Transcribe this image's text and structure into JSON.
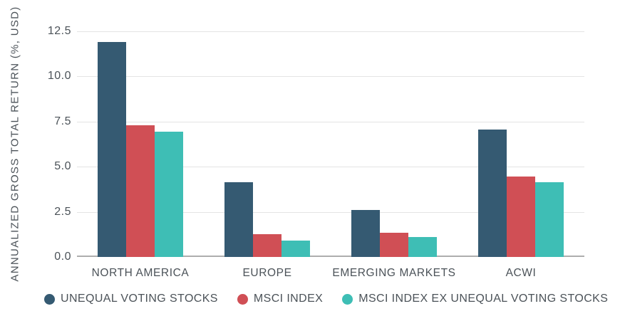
{
  "chart_data": {
    "type": "bar",
    "title": "",
    "xlabel": "",
    "ylabel": "ANNUALIZED GROSS TOTAL RETURN (%, USD)",
    "categories": [
      "NORTH AMERICA",
      "EUROPE",
      "EMERGING MARKETS",
      "ACWI"
    ],
    "series": [
      {
        "name": "UNEQUAL VOTING STOCKS",
        "color": "#355A72",
        "values": [
          11.9,
          4.15,
          2.6,
          7.05
        ]
      },
      {
        "name": "MSCI INDEX",
        "color": "#D04F55",
        "values": [
          7.3,
          1.25,
          1.35,
          4.45
        ]
      },
      {
        "name": "MSCI INDEX EX UNEQUAL VOTING STOCKS",
        "color": "#3EBEB5",
        "values": [
          6.95,
          0.9,
          1.1,
          4.15
        ]
      }
    ],
    "ylim": [
      0,
      12.5
    ],
    "ytick_values": [
      0,
      2.5,
      5,
      7.5,
      10,
      12.5
    ],
    "ytick_labels": [
      "0.0",
      "2.5",
      "5.0",
      "7.5",
      "10.0",
      "12.5"
    ],
    "grid": true,
    "legend_position": "bottom",
    "colors": {
      "text": "#4B5258",
      "grid": "#E4E4E4",
      "baseline": "#AEAEAE",
      "background": "#FFFFFF"
    }
  }
}
